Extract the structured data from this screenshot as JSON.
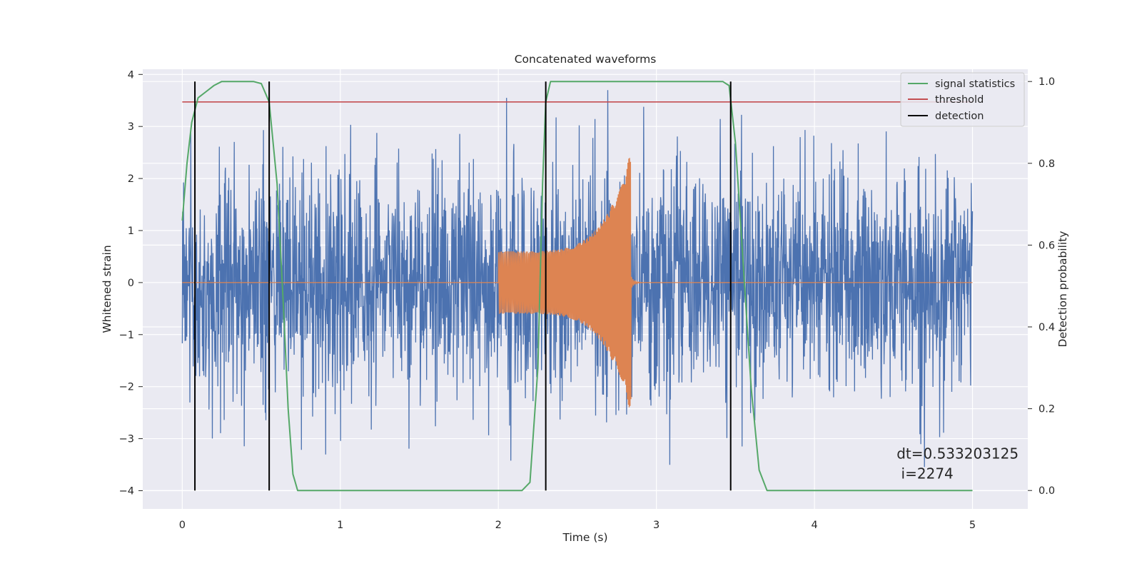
{
  "chart_data": {
    "type": "line",
    "title": "Concatenated waveforms",
    "xlabel": "Time (s)",
    "ylabel": "Whitened strain",
    "y2label": "Detection probability",
    "xlim": [
      -0.25,
      5.35
    ],
    "ylim": [
      -4.35,
      4.1
    ],
    "y2lim": [
      -0.045,
      1.03
    ],
    "xticks": [
      0,
      1,
      2,
      3,
      4,
      5
    ],
    "yticks": [
      -4,
      -3,
      -2,
      -1,
      0,
      1,
      2,
      3,
      4
    ],
    "y2ticks": [
      0.0,
      0.2,
      0.4,
      0.6,
      0.8,
      1.0
    ],
    "xtick_labels": [
      "0",
      "1",
      "2",
      "3",
      "4",
      "5"
    ],
    "ytick_labels": [
      "−4",
      "−3",
      "−2",
      "−1",
      "0",
      "1",
      "2",
      "3",
      "4"
    ],
    "y2tick_labels": [
      "0.0",
      "0.2",
      "0.4",
      "0.6",
      "0.8",
      "1.0"
    ],
    "grid": true,
    "legend_position": "top-right",
    "annotation": {
      "line1": "dt=0.533203125",
      "line2": " i=2274",
      "x": 4.52,
      "y": -3.4
    },
    "colors": {
      "background": "#eaeaf2",
      "grid": "#ffffff",
      "noise": "#4c72b0",
      "injection": "#dd8452",
      "signal_statistics": "#55a868",
      "threshold": "#c44e52",
      "detection": "#000000"
    },
    "series": [
      {
        "name": "",
        "role": "whitened noisy strain",
        "axis": "left",
        "x_range": [
          0,
          5
        ],
        "approx_range": [
          -4.0,
          3.7
        ]
      },
      {
        "name": "",
        "role": "injected waveform",
        "axis": "left",
        "x_range": [
          0,
          5
        ],
        "chirp_segment": {
          "start": 2.0,
          "end": 2.84,
          "start_amplitude": 0.6,
          "end_amplitude": 2.55
        }
      },
      {
        "name": "signal statistics",
        "axis": "right",
        "points": [
          [
            0.0,
            0.66
          ],
          [
            0.03,
            0.8
          ],
          [
            0.06,
            0.9
          ],
          [
            0.1,
            0.96
          ],
          [
            0.15,
            0.975
          ],
          [
            0.2,
            0.99
          ],
          [
            0.25,
            1.0
          ],
          [
            0.45,
            1.0
          ],
          [
            0.5,
            0.995
          ],
          [
            0.55,
            0.95
          ],
          [
            0.6,
            0.75
          ],
          [
            0.64,
            0.45
          ],
          [
            0.67,
            0.2
          ],
          [
            0.7,
            0.04
          ],
          [
            0.73,
            0.0
          ],
          [
            2.15,
            0.0
          ],
          [
            2.2,
            0.02
          ],
          [
            2.25,
            0.3
          ],
          [
            2.28,
            0.75
          ],
          [
            2.3,
            0.95
          ],
          [
            2.33,
            1.0
          ],
          [
            3.42,
            1.0
          ],
          [
            3.46,
            0.99
          ],
          [
            3.5,
            0.85
          ],
          [
            3.55,
            0.55
          ],
          [
            3.6,
            0.25
          ],
          [
            3.65,
            0.05
          ],
          [
            3.7,
            0.0
          ],
          [
            5.0,
            0.0
          ]
        ]
      },
      {
        "name": "threshold",
        "axis": "right",
        "value": 0.95,
        "x_range": [
          0,
          5
        ]
      },
      {
        "name": "detection",
        "axis": "right",
        "x_positions": [
          0.08,
          0.55,
          2.3,
          3.47
        ],
        "y_range": [
          0.0,
          1.0
        ]
      }
    ]
  }
}
